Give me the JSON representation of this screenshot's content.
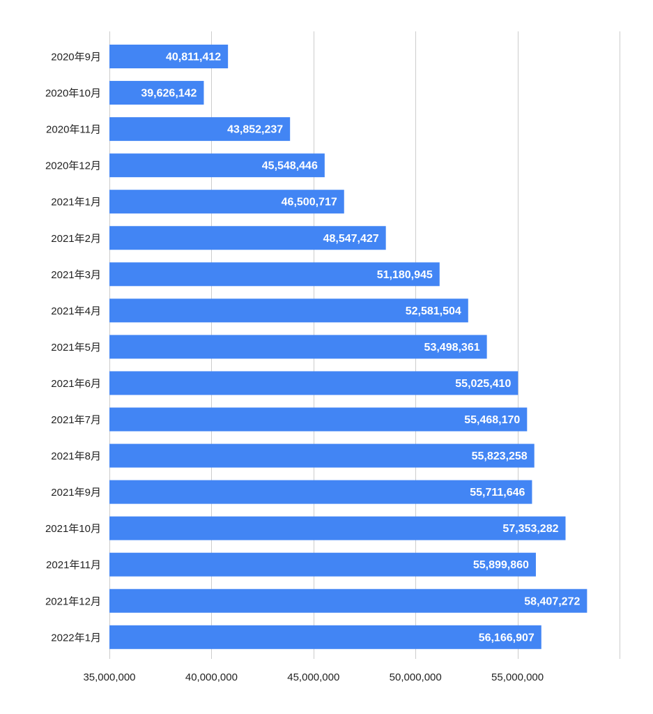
{
  "chart_data": {
    "type": "bar",
    "orientation": "horizontal",
    "title": "",
    "xlabel": "",
    "ylabel": "",
    "categories": [
      "2020年9月",
      "2020年10月",
      "2020年11月",
      "2020年12月",
      "2021年1月",
      "2021年2月",
      "2021年3月",
      "2021年4月",
      "2021年5月",
      "2021年6月",
      "2021年7月",
      "2021年8月",
      "2021年9月",
      "2021年10月",
      "2021年11月",
      "2021年12月",
      "2022年1月"
    ],
    "values": [
      40811412,
      39626142,
      43852237,
      45548446,
      46500717,
      48547427,
      51180945,
      52581504,
      53498361,
      55025410,
      55468170,
      55823258,
      55711646,
      57353282,
      55899860,
      58407272,
      56166907
    ],
    "value_labels": [
      "40,811,412",
      "39,626,142",
      "43,852,237",
      "45,548,446",
      "46,500,717",
      "48,547,427",
      "51,180,945",
      "52,581,504",
      "53,498,361",
      "55,025,410",
      "55,468,170",
      "55,823,258",
      "55,711,646",
      "57,353,282",
      "55,899,860",
      "58,407,272",
      "56,166,907"
    ],
    "xlim": [
      35000000,
      60000000
    ],
    "x_ticks": [
      35000000,
      40000000,
      45000000,
      50000000,
      55000000,
      60000000
    ],
    "x_tick_labels": [
      "35,000,000",
      "40,000,000",
      "45,000,000",
      "50,000,000",
      "55,000,000",
      ""
    ],
    "grid": true,
    "legend": "none",
    "bar_color": "#4285f4",
    "label_color": "#ffffff",
    "grid_color": "#cccccc"
  }
}
